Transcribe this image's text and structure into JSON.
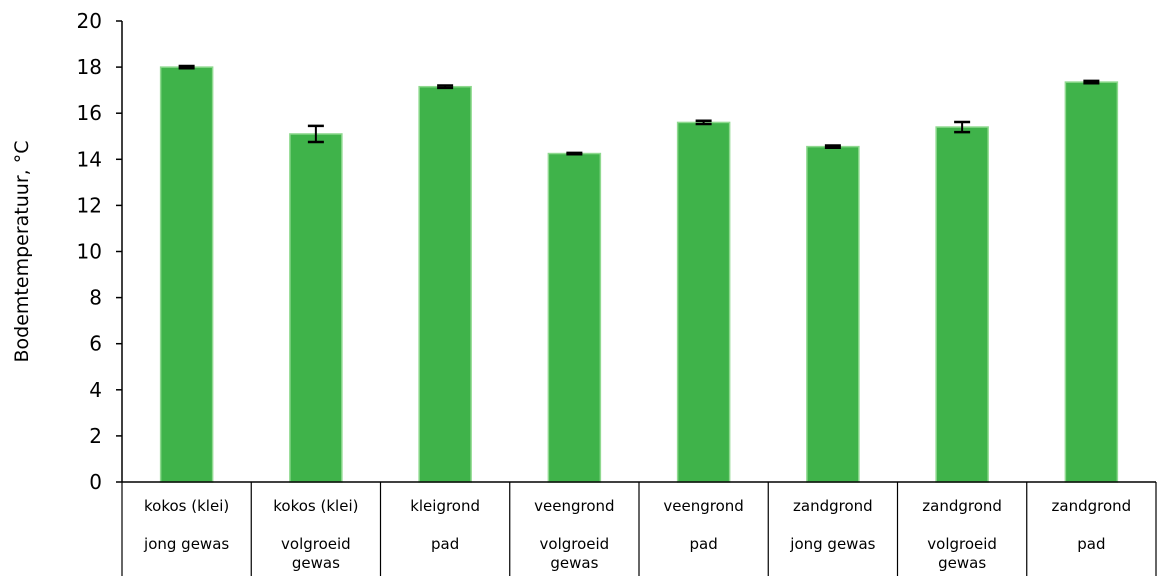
{
  "chart_data": {
    "type": "bar",
    "title": "",
    "xlabel": "",
    "ylabel": "Bodemtemperatuur, °C",
    "ylim": [
      0,
      20
    ],
    "yticks": [
      0,
      2,
      4,
      6,
      8,
      10,
      12,
      14,
      16,
      18,
      20
    ],
    "grid": false,
    "legend": "none",
    "bar_color": "#3fb34a",
    "bar_edge_color": "#8fd98f",
    "categories": [
      {
        "line1": "kokos (klei)",
        "line2": "jong gewas"
      },
      {
        "line1": "kokos (klei)",
        "line2": "volgroeid gewas"
      },
      {
        "line1": "kleigrond",
        "line2": "pad"
      },
      {
        "line1": "veengrond",
        "line2": "volgroeid gewas"
      },
      {
        "line1": "veengrond",
        "line2": "pad"
      },
      {
        "line1": "zandgrond",
        "line2": "jong gewas"
      },
      {
        "line1": "zandgrond",
        "line2": "volgroeid gewas"
      },
      {
        "line1": "zandgrond",
        "line2": "pad"
      }
    ],
    "values": [
      18.0,
      15.1,
      17.15,
      14.25,
      15.6,
      14.55,
      15.4,
      17.35
    ],
    "errors": [
      0.05,
      0.35,
      0.05,
      0.03,
      0.07,
      0.05,
      0.22,
      0.05
    ]
  }
}
